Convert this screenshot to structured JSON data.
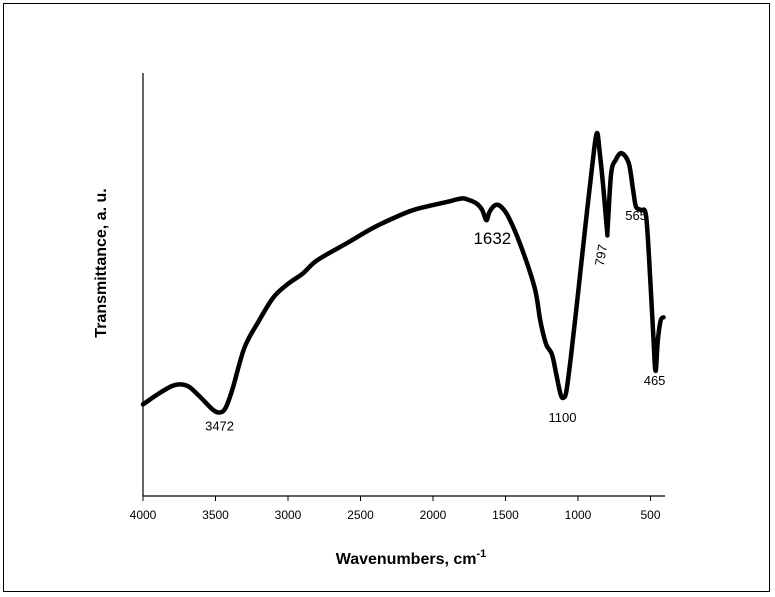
{
  "chart_data": {
    "type": "line",
    "xlabel": "Wavenumbers, cm",
    "xlabel_superscript": "-1",
    "ylabel": "Transmittance, a. u.",
    "xlim": [
      4000,
      400
    ],
    "x_reversed": true,
    "ylim": [
      0,
      100
    ],
    "y_ticks_shown": false,
    "grid": false,
    "legend": "none",
    "x_ticks": [
      4000,
      3500,
      3000,
      2500,
      2000,
      1500,
      1000,
      500
    ],
    "x_tick_labels": [
      "4000",
      "3500",
      "3000",
      "2500",
      "2000",
      "1500",
      "1000",
      "500"
    ],
    "series": [
      {
        "color": "#000000",
        "x": [
          4000,
          3900,
          3800,
          3740,
          3680,
          3600,
          3520,
          3472,
          3430,
          3380,
          3300,
          3200,
          3100,
          3000,
          2900,
          2800,
          2600,
          2400,
          2200,
          2100,
          2000,
          1900,
          1800,
          1750,
          1700,
          1660,
          1632,
          1610,
          1570,
          1530,
          1480,
          1400,
          1300,
          1260,
          1220,
          1180,
          1150,
          1120,
          1100,
          1080,
          1050,
          1000,
          950,
          900,
          870,
          850,
          830,
          800,
          797,
          790,
          770,
          740,
          700,
          650,
          620,
          600,
          565,
          530,
          500,
          480,
          465,
          450,
          430,
          410
        ],
        "y": [
          13.0,
          16.0,
          18.5,
          19.0,
          18.2,
          15.0,
          11.5,
          10.6,
          12.0,
          18.0,
          30.0,
          38.0,
          45.0,
          49.0,
          52.0,
          56.0,
          61.0,
          66.0,
          70.0,
          71.5,
          72.5,
          73.5,
          74.5,
          74.0,
          73.0,
          71.0,
          68.0,
          70.5,
          72.5,
          72.0,
          69.0,
          61.0,
          48.0,
          38.0,
          31.0,
          28.0,
          22.0,
          16.0,
          15.0,
          17.0,
          27.0,
          46.0,
          66.0,
          85.0,
          94.0,
          88.0,
          80.0,
          65.0,
          64.5,
          70.0,
          82.5,
          86.0,
          88.0,
          85.0,
          77.0,
          72.0,
          71.0,
          69.0,
          49.0,
          33.0,
          23.0,
          32.0,
          38.0,
          39.0
        ]
      }
    ],
    "annotations": [
      {
        "text": "3472",
        "x": 3472,
        "y": 10.6
      },
      {
        "text": "1632",
        "x": 1632,
        "y": 68.0
      },
      {
        "text": "1100",
        "x": 1100,
        "y": 15.0
      },
      {
        "text": "797",
        "x": 797,
        "y": 64.5
      },
      {
        "text": "565",
        "x": 565,
        "y": 71.0
      },
      {
        "text": "465",
        "x": 465,
        "y": 23.0
      }
    ]
  }
}
